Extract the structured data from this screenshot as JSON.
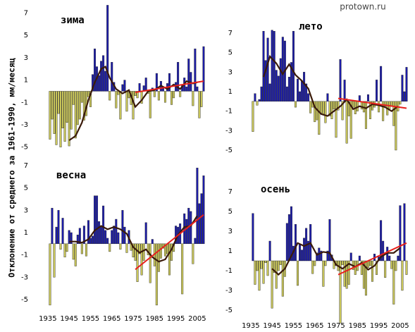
{
  "y_label": "Отклонение от среднего за 1961-1990, мм/месяц",
  "watermark": "protown.ru",
  "chart_data": [
    {
      "type": "bar",
      "title": "зима",
      "x": [
        1936,
        1937,
        1938,
        1939,
        1940,
        1941,
        1942,
        1943,
        1944,
        1945,
        1946,
        1947,
        1948,
        1949,
        1950,
        1951,
        1952,
        1953,
        1954,
        1955,
        1956,
        1957,
        1958,
        1959,
        1960,
        1961,
        1962,
        1963,
        1964,
        1965,
        1966,
        1967,
        1968,
        1969,
        1970,
        1971,
        1972,
        1973,
        1974,
        1975,
        1976,
        1977,
        1978,
        1979,
        1980,
        1981,
        1982,
        1983,
        1984,
        1985,
        1986,
        1987,
        1988,
        1989,
        1990,
        1991,
        1992,
        1993,
        1994,
        1995,
        1996,
        1997,
        1998,
        1999,
        2000,
        2001,
        2002,
        2003,
        2004,
        2005,
        2006,
        2007,
        2008
      ],
      "values": [
        -4.3,
        -2.5,
        -3.8,
        -4.8,
        -2,
        -5,
        -3.3,
        -4.5,
        -2.8,
        -4.9,
        -3.4,
        -1.2,
        -4.2,
        -3,
        -2.5,
        -1,
        -2.6,
        -2.2,
        -0.5,
        -1.4,
        1.5,
        3.8,
        2.2,
        1.4,
        2.7,
        3.2,
        1.8,
        7.7,
        -0.8,
        2.6,
        0.8,
        -1.5,
        -0.3,
        -2.5,
        0.6,
        1,
        -1.8,
        -0.6,
        -1.2,
        -2.5,
        -0.4,
        -0.6,
        0.7,
        -1.1,
        0.5,
        1.2,
        -0.2,
        -2.4,
        0.3,
        -0.5,
        1.6,
        -0.8,
        0.9,
        0.4,
        -1,
        0.7,
        1.6,
        -1.2,
        -0.6,
        0.8,
        2.6,
        -0.5,
        0.6,
        1.2,
        0.4,
        2.9,
        1.7,
        -1.3,
        3.8,
        0.4,
        -2.4,
        -1.4,
        4
      ],
      "positive_color": "#1c1ca8",
      "negative_color": "#c9c65a",
      "smooth": {
        "x": [
          1945,
          1948,
          1951,
          1954,
          1957,
          1960,
          1962,
          1964,
          1967,
          1970,
          1973,
          1976,
          1979,
          1982,
          1985,
          1988,
          1991,
          1994,
          1997,
          2000,
          2003,
          2005
        ],
        "values": [
          -4.4,
          -4,
          -2.8,
          -0.8,
          0.8,
          2,
          2.2,
          1.2,
          0.2,
          -0.2,
          0.1,
          -1.4,
          -0.8,
          0,
          0.1,
          0.5,
          0.2,
          0.6,
          0.2,
          0.9,
          0.7,
          0.8
        ],
        "color": "#3a1a0a"
      },
      "trend": {
        "x": [
          1976,
          2008
        ],
        "values": [
          -0.1,
          0.9
        ],
        "color": "#e8201c"
      },
      "xlim": [
        1932.4,
        2009
      ],
      "ylim": [
        -5.4,
        7.6
      ],
      "yticks": [
        7,
        5,
        3,
        1,
        -1,
        -3,
        -5
      ]
    },
    {
      "type": "bar",
      "title": "весна",
      "x": [
        1936,
        1937,
        1938,
        1939,
        1940,
        1941,
        1942,
        1943,
        1944,
        1945,
        1946,
        1947,
        1948,
        1949,
        1950,
        1951,
        1952,
        1953,
        1954,
        1955,
        1956,
        1957,
        1958,
        1959,
        1960,
        1961,
        1962,
        1963,
        1964,
        1965,
        1966,
        1967,
        1968,
        1969,
        1970,
        1971,
        1972,
        1973,
        1974,
        1975,
        1976,
        1977,
        1978,
        1979,
        1980,
        1981,
        1982,
        1983,
        1984,
        1985,
        1986,
        1987,
        1988,
        1989,
        1990,
        1991,
        1992,
        1993,
        1994,
        1995,
        1996,
        1997,
        1998,
        1999,
        2000,
        2001,
        2002,
        2003,
        2004,
        2005,
        2006,
        2007,
        2008
      ],
      "values": [
        -5.5,
        3.2,
        -3,
        1.5,
        3,
        -0.5,
        2.3,
        -1.2,
        -0.7,
        1.2,
        1,
        -1.4,
        -2,
        0.8,
        1.4,
        -0.9,
        1.6,
        -1.1,
        2.1,
        0.5,
        0.7,
        4.3,
        4.3,
        2,
        1.5,
        3.4,
        1.2,
        0.5,
        -0.7,
        1.2,
        1.6,
        2.2,
        1,
        -0.5,
        3,
        1.5,
        -0.8,
        1.2,
        -0.6,
        -1.2,
        -1.5,
        -3.4,
        -0.9,
        -2.8,
        -1.5,
        1.9,
        -1,
        -3.5,
        0.4,
        -2,
        -5.5,
        -2.5,
        -1.3,
        -0.4,
        -1.1,
        -0.9,
        -2.8,
        -1.5,
        -0.7,
        1.6,
        1.5,
        1.8,
        -4.5,
        2.7,
        2.2,
        3.2,
        2.9,
        -1.8,
        0.5,
        6.8,
        3.6,
        4.5,
        6.1
      ],
      "positive_color": "#1c1ca8",
      "negative_color": "#c9c65a",
      "smooth": {
        "x": [
          1945,
          1948,
          1951,
          1954,
          1957,
          1960,
          1963,
          1966,
          1969,
          1972,
          1975,
          1978,
          1981,
          1984,
          1987,
          1990,
          1993,
          1996,
          1999,
          2002,
          2005
        ],
        "values": [
          0.2,
          0.2,
          0.1,
          0.4,
          1.2,
          1.6,
          1.3,
          1.5,
          1.3,
          0.9,
          -0.3,
          -0.8,
          -0.5,
          -1.2,
          -1.6,
          -1.4,
          -0.5,
          0.8,
          1.5,
          1.6,
          2.5
        ],
        "color": "#3a1a0a"
      },
      "trend": {
        "x": [
          1976,
          2008
        ],
        "values": [
          -2.3,
          2.6
        ],
        "color": "#e8201c"
      },
      "xlim": [
        1932.4,
        2009
      ],
      "ylim": [
        -6,
        7.4
      ],
      "yticks": [
        7,
        5,
        3,
        1,
        -1,
        -3,
        -5
      ],
      "xticks": [
        1935,
        1945,
        1955,
        1965,
        1975,
        1985,
        1995,
        2005
      ]
    },
    {
      "type": "bar",
      "title": "лето",
      "x": [
        1936,
        1937,
        1938,
        1939,
        1940,
        1941,
        1942,
        1943,
        1944,
        1945,
        1946,
        1947,
        1948,
        1949,
        1950,
        1951,
        1952,
        1953,
        1954,
        1955,
        1956,
        1957,
        1958,
        1959,
        1960,
        1961,
        1962,
        1963,
        1964,
        1965,
        1966,
        1967,
        1968,
        1969,
        1970,
        1971,
        1972,
        1973,
        1974,
        1975,
        1976,
        1977,
        1978,
        1979,
        1980,
        1981,
        1982,
        1983,
        1984,
        1985,
        1986,
        1987,
        1988,
        1989,
        1990,
        1991,
        1992,
        1993,
        1994,
        1995,
        1996,
        1997,
        1998,
        1999,
        2000,
        2001,
        2002,
        2003,
        2004,
        2005,
        2006,
        2007,
        2008
      ],
      "values": [
        -3.1,
        0.8,
        -0.4,
        0.2,
        1.5,
        7.2,
        4.2,
        6.5,
        1.8,
        7.3,
        7.2,
        3.2,
        2.6,
        4.4,
        6.6,
        6.2,
        1.5,
        2.5,
        4,
        7.2,
        -0.6,
        2.3,
        1,
        2.1,
        3,
        1.8,
        0.8,
        -1.2,
        -0.6,
        -2.1,
        -1.9,
        -3.4,
        -1.2,
        -1.3,
        -2.2,
        0.8,
        -1.5,
        -1.8,
        -0.8,
        -3.7,
        -0.9,
        4.3,
        -1.9,
        2.2,
        -4.3,
        -1.5,
        -3.8,
        -0.6,
        -1.3,
        -1,
        0.6,
        -0.8,
        -1.1,
        -2.8,
        0.7,
        -1.8,
        -0.9,
        -0.6,
        2.2,
        -1.1,
        3.6,
        -2,
        -0.5,
        -1.4,
        -0.8,
        -0.5,
        -2.5,
        -5,
        -1,
        -0.3,
        2.7,
        1,
        3.5
      ],
      "positive_color": "#1c1ca8",
      "negative_color": "#c9c65a",
      "smooth": {
        "x": [
          1941,
          1944,
          1947,
          1950,
          1953,
          1956,
          1959,
          1962,
          1965,
          1968,
          1971,
          1974,
          1977,
          1980,
          1983,
          1986,
          1989,
          1992,
          1995,
          1998,
          2001,
          2004
        ],
        "values": [
          2.5,
          4.6,
          3.9,
          2.8,
          3.8,
          2.7,
          2.1,
          1.3,
          -0.6,
          -1.3,
          -1.5,
          -1,
          -0.5,
          0.2,
          -0.8,
          -0.5,
          -0.7,
          -0.3,
          -0.4,
          -0.6,
          -1,
          -0.5
        ],
        "color": "#3a1a0a"
      },
      "trend": {
        "x": [
          1976,
          2008
        ],
        "values": [
          0.3,
          -0.7
        ],
        "color": "#e8201c"
      },
      "xlim": [
        1932.4,
        2009
      ],
      "ylim": [
        -5.5,
        9
      ],
      "yticks": [
        7,
        5,
        3,
        1,
        -1,
        -3,
        -5
      ]
    },
    {
      "type": "bar",
      "title": "осень",
      "x": [
        1936,
        1937,
        1938,
        1939,
        1940,
        1941,
        1942,
        1943,
        1944,
        1945,
        1946,
        1947,
        1948,
        1949,
        1950,
        1951,
        1952,
        1953,
        1954,
        1955,
        1956,
        1957,
        1958,
        1959,
        1960,
        1961,
        1962,
        1963,
        1964,
        1965,
        1966,
        1967,
        1968,
        1969,
        1970,
        1971,
        1972,
        1973,
        1974,
        1975,
        1976,
        1977,
        1978,
        1979,
        1980,
        1981,
        1982,
        1983,
        1984,
        1985,
        1986,
        1987,
        1988,
        1989,
        1990,
        1991,
        1992,
        1993,
        1994,
        1995,
        1996,
        1997,
        1998,
        1999,
        2000,
        2001,
        2002,
        2003,
        2004,
        2005,
        2006,
        2007,
        2008
      ],
      "values": [
        4.8,
        -2.4,
        -1,
        -3,
        -0.8,
        -2.3,
        -0.2,
        -1.5,
        2,
        -4.8,
        -1.2,
        -2.8,
        -1,
        -0.4,
        -3.6,
        -1.6,
        3.8,
        4.7,
        5.5,
        1.5,
        3.7,
        -2.5,
        1.7,
        1.1,
        2.3,
        3.3,
        2,
        3.7,
        -1.3,
        -0.5,
        0.8,
        1.3,
        1,
        -2.6,
        -0.5,
        1,
        4.2,
        0.6,
        -0.8,
        -0.5,
        -1,
        -6.3,
        -0.4,
        -2.6,
        -2.8,
        -2.4,
        0.8,
        -0.9,
        -1.4,
        -1,
        0.5,
        -1.4,
        -2.8,
        -3.5,
        -0.7,
        -0.5,
        -2.1,
        0.7,
        -1.4,
        0.4,
        4.1,
        2,
        -1.7,
        1.4,
        0.5,
        -0.8,
        -4.4,
        -1,
        0.5,
        5.6,
        -3,
        5.8,
        -1.4
      ],
      "positive_color": "#1c1ca8",
      "negative_color": "#c9c65a",
      "smooth": {
        "x": [
          1945,
          1948,
          1951,
          1954,
          1957,
          1960,
          1963,
          1966,
          1969,
          1972,
          1975,
          1978,
          1981,
          1984,
          1987,
          1990,
          1993,
          1996,
          1999,
          2002,
          2005
        ],
        "values": [
          -0.8,
          -1.4,
          -0.8,
          0.5,
          1.8,
          1.5,
          1.8,
          0.6,
          0.9,
          0.8,
          -0.4,
          -0.8,
          -0.3,
          -0.6,
          -0.2,
          -0.9,
          -0.5,
          0.4,
          0.8,
          0.8,
          1.3
        ],
        "color": "#3a1a0a"
      },
      "trend": {
        "x": [
          1976,
          2008
        ],
        "values": [
          -1.4,
          1.8
        ],
        "color": "#e8201c"
      },
      "xlim": [
        1932.4,
        2009
      ],
      "ylim": [
        -6.3,
        8.6
      ],
      "yticks": [
        7,
        5,
        3,
        1,
        -1,
        -3,
        -5
      ],
      "xticks": [
        1935,
        1945,
        1955,
        1965,
        1975,
        1985,
        1995,
        2005
      ]
    }
  ]
}
